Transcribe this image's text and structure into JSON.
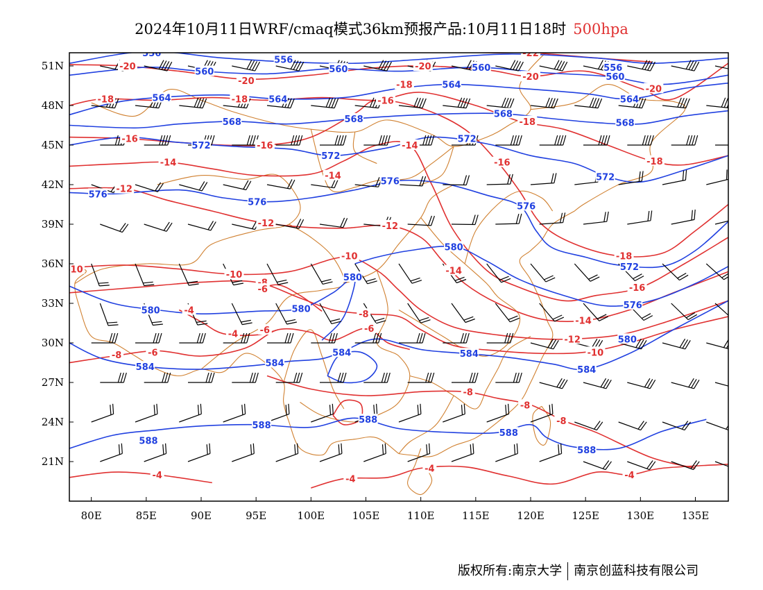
{
  "title": {
    "main": "2024年10月11日WRF/cmaq模式36km预报产品:10月11日18时",
    "level": "500hpa"
  },
  "axes": {
    "lat_labels": [
      "51N",
      "48N",
      "45N",
      "42N",
      "39N",
      "36N",
      "33N",
      "30N",
      "27N",
      "24N",
      "21N"
    ],
    "lon_labels": [
      "80E",
      "85E",
      "90E",
      "95E",
      "100E",
      "105E",
      "110E",
      "115E",
      "120E",
      "125E",
      "130E",
      "135E"
    ]
  },
  "legend": {
    "height_color": "#2040e0",
    "temp_color": "#e03030",
    "border_color": "#d08030",
    "wind_color": "#000000"
  },
  "chart_data": {
    "type": "map",
    "lon_range": [
      78,
      138
    ],
    "lat_range": [
      18,
      52
    ],
    "height_contours_dagpm": [
      556,
      560,
      564,
      568,
      572,
      576,
      580,
      584,
      588
    ],
    "temperature_contours_c": [
      -22,
      -20,
      -18,
      -16,
      -14,
      -12,
      -10,
      -8,
      -6,
      -4
    ],
    "height_labels": [
      {
        "text": "556",
        "lon": 85.5,
        "lat": 52.0
      },
      {
        "text": "556",
        "lon": 97.5,
        "lat": 51.5
      },
      {
        "text": "560",
        "lon": 90.3,
        "lat": 50.6
      },
      {
        "text": "560",
        "lon": 102.5,
        "lat": 50.8
      },
      {
        "text": "560",
        "lon": 115.5,
        "lat": 50.9
      },
      {
        "text": "556",
        "lon": 127.5,
        "lat": 50.9
      },
      {
        "text": "560",
        "lon": 127.7,
        "lat": 50.2
      },
      {
        "text": "564",
        "lon": 86.4,
        "lat": 48.6
      },
      {
        "text": "564",
        "lon": 97.0,
        "lat": 48.5
      },
      {
        "text": "564",
        "lon": 112.8,
        "lat": 49.6
      },
      {
        "text": "564",
        "lon": 129.0,
        "lat": 48.5
      },
      {
        "text": "568",
        "lon": 92.8,
        "lat": 46.8
      },
      {
        "text": "568",
        "lon": 103.9,
        "lat": 47.0
      },
      {
        "text": "568",
        "lon": 117.5,
        "lat": 47.4
      },
      {
        "text": "568",
        "lon": 128.6,
        "lat": 46.7
      },
      {
        "text": "572",
        "lon": 90.0,
        "lat": 45.0
      },
      {
        "text": "572",
        "lon": 101.8,
        "lat": 44.2
      },
      {
        "text": "572",
        "lon": 114.2,
        "lat": 45.5
      },
      {
        "text": "572",
        "lon": 126.8,
        "lat": 42.6
      },
      {
        "text": "572",
        "lon": 129.0,
        "lat": 35.8
      },
      {
        "text": "576",
        "lon": 80.6,
        "lat": 41.3
      },
      {
        "text": "576",
        "lon": 95.1,
        "lat": 40.7
      },
      {
        "text": "576",
        "lon": 107.2,
        "lat": 42.3
      },
      {
        "text": "576",
        "lon": 119.6,
        "lat": 40.4
      },
      {
        "text": "576",
        "lon": 129.3,
        "lat": 32.9
      },
      {
        "text": "580",
        "lon": 113.0,
        "lat": 37.3
      },
      {
        "text": "580",
        "lon": 103.8,
        "lat": 35.0
      },
      {
        "text": "580",
        "lon": 85.4,
        "lat": 32.5
      },
      {
        "text": "580",
        "lon": 99.1,
        "lat": 32.6
      },
      {
        "text": "580",
        "lon": 128.8,
        "lat": 30.3
      },
      {
        "text": "584",
        "lon": 84.9,
        "lat": 28.2
      },
      {
        "text": "584",
        "lon": 96.7,
        "lat": 28.5
      },
      {
        "text": "584",
        "lon": 102.8,
        "lat": 29.3
      },
      {
        "text": "584",
        "lon": 114.4,
        "lat": 29.2
      },
      {
        "text": "584",
        "lon": 125.1,
        "lat": 28.0
      },
      {
        "text": "588",
        "lon": 105.2,
        "lat": 24.2
      },
      {
        "text": "588",
        "lon": 85.2,
        "lat": 22.6
      },
      {
        "text": "588",
        "lon": 95.5,
        "lat": 23.8
      },
      {
        "text": "588",
        "lon": 118.0,
        "lat": 23.2
      },
      {
        "text": "588",
        "lon": 125.1,
        "lat": 21.9
      }
    ],
    "temperature_labels": [
      {
        "text": "-20",
        "lon": 83.3,
        "lat": 51.0
      },
      {
        "text": "-20",
        "lon": 94.1,
        "lat": 49.9
      },
      {
        "text": "-20",
        "lon": 110.2,
        "lat": 51.0
      },
      {
        "text": "-20",
        "lon": 120.0,
        "lat": 50.2
      },
      {
        "text": "-22",
        "lon": 120.0,
        "lat": 52.0
      },
      {
        "text": "-20",
        "lon": 131.2,
        "lat": 49.3
      },
      {
        "text": "-18",
        "lon": 81.3,
        "lat": 48.5
      },
      {
        "text": "-18",
        "lon": 93.5,
        "lat": 48.5
      },
      {
        "text": "-18",
        "lon": 108.5,
        "lat": 49.6
      },
      {
        "text": "-18",
        "lon": 119.7,
        "lat": 46.8
      },
      {
        "text": "-18",
        "lon": 131.3,
        "lat": 43.8
      },
      {
        "text": "-18",
        "lon": 128.5,
        "lat": 36.6
      },
      {
        "text": "-16",
        "lon": 83.5,
        "lat": 45.5
      },
      {
        "text": "-16",
        "lon": 95.8,
        "lat": 45.0
      },
      {
        "text": "-16",
        "lon": 106.8,
        "lat": 48.4
      },
      {
        "text": "-16",
        "lon": 117.4,
        "lat": 43.7
      },
      {
        "text": "-16",
        "lon": 129.7,
        "lat": 34.2
      },
      {
        "text": "-14",
        "lon": 87.0,
        "lat": 43.7
      },
      {
        "text": "-14",
        "lon": 102.0,
        "lat": 42.7
      },
      {
        "text": "-14",
        "lon": 109.0,
        "lat": 45.0
      },
      {
        "text": "-14",
        "lon": 113.0,
        "lat": 35.5
      },
      {
        "text": "-14",
        "lon": 124.8,
        "lat": 31.7
      },
      {
        "text": "-12",
        "lon": 83.0,
        "lat": 41.7
      },
      {
        "text": "-12",
        "lon": 95.9,
        "lat": 39.1
      },
      {
        "text": "-12",
        "lon": 107.2,
        "lat": 38.9
      },
      {
        "text": "-12",
        "lon": 123.8,
        "lat": 30.3
      },
      {
        "text": "-10",
        "lon": 78.5,
        "lat": 35.6
      },
      {
        "text": "-10",
        "lon": 93.0,
        "lat": 35.2
      },
      {
        "text": "-10",
        "lon": 103.5,
        "lat": 36.6
      },
      {
        "text": "-10",
        "lon": 125.9,
        "lat": 29.3
      },
      {
        "text": "-8",
        "lon": 95.6,
        "lat": 34.6
      },
      {
        "text": "-8",
        "lon": 104.8,
        "lat": 32.2
      },
      {
        "text": "-8",
        "lon": 82.3,
        "lat": 29.1
      },
      {
        "text": "-8",
        "lon": 114.3,
        "lat": 26.3
      },
      {
        "text": "-8",
        "lon": 119.5,
        "lat": 25.3
      },
      {
        "text": "-8",
        "lon": 122.8,
        "lat": 24.1
      },
      {
        "text": "-6",
        "lon": 95.6,
        "lat": 34.1
      },
      {
        "text": "-6",
        "lon": 85.6,
        "lat": 29.3
      },
      {
        "text": "-6",
        "lon": 105.3,
        "lat": 31.1
      },
      {
        "text": "-6",
        "lon": 95.8,
        "lat": 31.0
      },
      {
        "text": "-4",
        "lon": 88.9,
        "lat": 32.5
      },
      {
        "text": "-4",
        "lon": 92.9,
        "lat": 30.7
      },
      {
        "text": "-4",
        "lon": 86.0,
        "lat": 20.0
      },
      {
        "text": "-4",
        "lon": 103.6,
        "lat": 19.7
      },
      {
        "text": "-4",
        "lon": 110.8,
        "lat": 20.5
      },
      {
        "text": "-4",
        "lon": 129.0,
        "lat": 20.0
      }
    ]
  },
  "footer": {
    "left": "版权所有:南京大学",
    "right": "南京创蓝科技有限公司"
  }
}
